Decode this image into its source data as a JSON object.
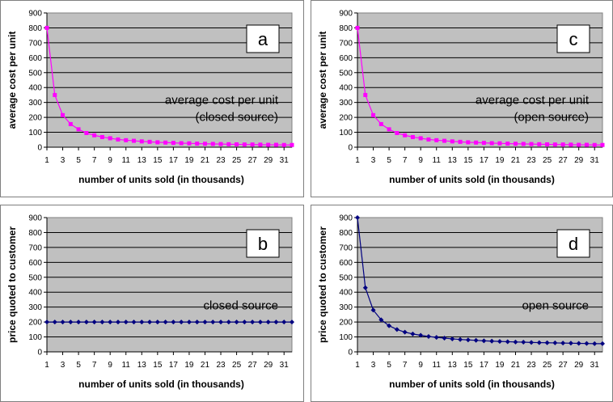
{
  "colors": {
    "plot_bg": "#c0c0c0",
    "magenta": "#ff00ff",
    "navy": "#000080",
    "border": "#7f7f7f"
  },
  "chart_data": [
    {
      "panel": "a",
      "type": "line",
      "letter": "a",
      "color": "#ff00ff",
      "marker": "square",
      "ylabel": "average cost per unit",
      "xlabel": "number of units sold (in thousands)",
      "annotation": [
        "average cost per unit",
        "(closed source)"
      ],
      "ylim": [
        0,
        900
      ],
      "yticks": [
        0,
        100,
        200,
        300,
        400,
        500,
        600,
        700,
        800,
        900
      ],
      "xlim": [
        1,
        32
      ],
      "xticks": [
        1,
        3,
        5,
        7,
        9,
        11,
        13,
        15,
        17,
        19,
        21,
        23,
        25,
        27,
        29,
        31
      ],
      "x": [
        1,
        2,
        3,
        4,
        5,
        6,
        7,
        8,
        9,
        10,
        11,
        12,
        13,
        14,
        15,
        16,
        17,
        18,
        19,
        20,
        21,
        22,
        23,
        24,
        25,
        26,
        27,
        28,
        29,
        30,
        31,
        32
      ],
      "y": [
        800,
        350,
        215,
        155,
        120,
        95,
        80,
        68,
        60,
        52,
        47,
        43,
        39,
        36,
        33,
        31,
        29,
        27,
        26,
        24,
        23,
        22,
        21,
        20,
        19,
        18,
        18,
        17,
        16,
        16,
        15,
        15
      ]
    },
    {
      "panel": "c",
      "type": "line",
      "letter": "c",
      "color": "#ff00ff",
      "marker": "square",
      "ylabel": "average cost per unit",
      "xlabel": "number of units sold (in thousands)",
      "annotation": [
        "average cost per unit",
        "(open source)"
      ],
      "ylim": [
        0,
        900
      ],
      "yticks": [
        0,
        100,
        200,
        300,
        400,
        500,
        600,
        700,
        800,
        900
      ],
      "xlim": [
        1,
        32
      ],
      "xticks": [
        1,
        3,
        5,
        7,
        9,
        11,
        13,
        15,
        17,
        19,
        21,
        23,
        25,
        27,
        29,
        31
      ],
      "x": [
        1,
        2,
        3,
        4,
        5,
        6,
        7,
        8,
        9,
        10,
        11,
        12,
        13,
        14,
        15,
        16,
        17,
        18,
        19,
        20,
        21,
        22,
        23,
        24,
        25,
        26,
        27,
        28,
        29,
        30,
        31,
        32
      ],
      "y": [
        800,
        350,
        215,
        155,
        120,
        95,
        80,
        68,
        60,
        52,
        47,
        43,
        39,
        36,
        33,
        31,
        29,
        27,
        26,
        24,
        23,
        22,
        21,
        20,
        19,
        18,
        18,
        17,
        16,
        16,
        15,
        15
      ]
    },
    {
      "panel": "b",
      "type": "line",
      "letter": "b",
      "color": "#000080",
      "marker": "diamond",
      "ylabel": "price quoted to customer",
      "xlabel": "number of units sold (in thousands)",
      "annotation": [
        "closed source"
      ],
      "ylim": [
        0,
        900
      ],
      "yticks": [
        0,
        100,
        200,
        300,
        400,
        500,
        600,
        700,
        800,
        900
      ],
      "xlim": [
        1,
        32
      ],
      "xticks": [
        1,
        3,
        5,
        7,
        9,
        11,
        13,
        15,
        17,
        19,
        21,
        23,
        25,
        27,
        29,
        31
      ],
      "x": [
        1,
        2,
        3,
        4,
        5,
        6,
        7,
        8,
        9,
        10,
        11,
        12,
        13,
        14,
        15,
        16,
        17,
        18,
        19,
        20,
        21,
        22,
        23,
        24,
        25,
        26,
        27,
        28,
        29,
        30,
        31,
        32
      ],
      "y": [
        200,
        200,
        200,
        200,
        200,
        200,
        200,
        200,
        200,
        200,
        200,
        200,
        200,
        200,
        200,
        200,
        200,
        200,
        200,
        200,
        200,
        200,
        200,
        200,
        200,
        200,
        200,
        200,
        200,
        200,
        200,
        200
      ]
    },
    {
      "panel": "d",
      "type": "line",
      "letter": "d",
      "color": "#000080",
      "marker": "diamond",
      "ylabel": "price quoted to customer",
      "xlabel": "number of units sold (in thousands)",
      "annotation": [
        "open source"
      ],
      "ylim": [
        0,
        900
      ],
      "yticks": [
        0,
        100,
        200,
        300,
        400,
        500,
        600,
        700,
        800,
        900
      ],
      "xlim": [
        1,
        32
      ],
      "xticks": [
        1,
        3,
        5,
        7,
        9,
        11,
        13,
        15,
        17,
        19,
        21,
        23,
        25,
        27,
        29,
        31
      ],
      "x": [
        1,
        2,
        3,
        4,
        5,
        6,
        7,
        8,
        9,
        10,
        11,
        12,
        13,
        14,
        15,
        16,
        17,
        18,
        19,
        20,
        21,
        22,
        23,
        24,
        25,
        26,
        27,
        28,
        29,
        30,
        31,
        32
      ],
      "y": [
        900,
        430,
        280,
        215,
        175,
        150,
        132,
        120,
        111,
        103,
        97,
        92,
        87,
        83,
        80,
        77,
        74,
        72,
        70,
        68,
        66,
        65,
        63,
        62,
        61,
        60,
        59,
        58,
        57,
        56,
        55,
        55
      ]
    }
  ]
}
